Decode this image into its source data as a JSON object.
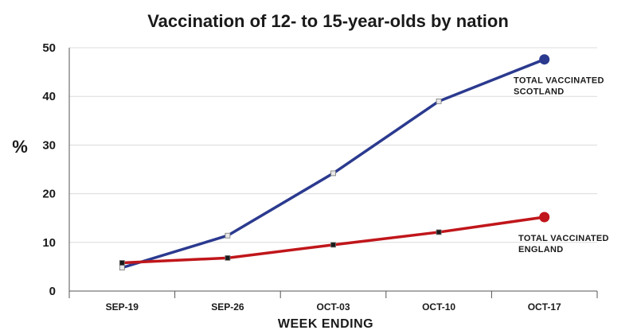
{
  "chart_data": {
    "type": "line",
    "title": "Vaccination of 12- to 15-year-olds by nation",
    "xlabel": "WEEK ENDING",
    "ylabel": "%",
    "categories": [
      "SEP-19",
      "SEP-26",
      "OCT-03",
      "OCT-10",
      "OCT-17"
    ],
    "yticks": [
      "0",
      "10",
      "20",
      "30",
      "40",
      "50"
    ],
    "ylim": [
      0,
      50
    ],
    "grid": true,
    "legend": "none",
    "series": [
      {
        "name": "Scotland",
        "color": "#2b3a8f",
        "marker_fill": "#e8e8e8",
        "values": [
          4.8,
          11.4,
          24.2,
          39.0,
          47.6
        ],
        "label_line1": "TOTAL VACCINATED",
        "label_line2": "SCOTLAND"
      },
      {
        "name": "England",
        "color": "#c0161b",
        "marker_fill": "#1a1a1a",
        "values": [
          5.8,
          6.8,
          9.5,
          12.1,
          15.2
        ],
        "label_line1": "TOTAL VACCINATED",
        "label_line2": "ENGLAND"
      }
    ]
  }
}
